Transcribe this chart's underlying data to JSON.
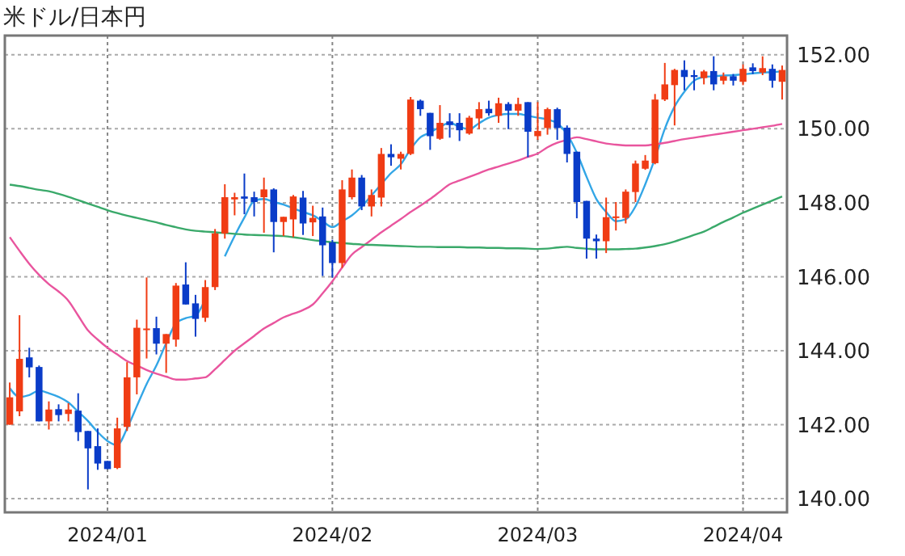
{
  "chart_data": {
    "type": "candlestick",
    "title": "米ドル/日本円",
    "categories": [
      null,
      null,
      null,
      null,
      null,
      null,
      null,
      null,
      null,
      null,
      "2024/01",
      null,
      null,
      null,
      null,
      null,
      null,
      null,
      null,
      null,
      null,
      null,
      null,
      null,
      null,
      null,
      null,
      null,
      null,
      null,
      null,
      null,
      null,
      "2024/02",
      null,
      null,
      null,
      null,
      null,
      null,
      null,
      null,
      null,
      null,
      null,
      null,
      null,
      null,
      null,
      null,
      null,
      null,
      null,
      null,
      "2024/03",
      null,
      null,
      null,
      null,
      null,
      null,
      null,
      null,
      null,
      null,
      null,
      null,
      null,
      null,
      null,
      null,
      null,
      null,
      null,
      null,
      "2024/04",
      null,
      null,
      null,
      null
    ],
    "ohlc": [
      [
        142.0,
        143.14,
        142.0,
        142.74
      ],
      [
        142.36,
        144.96,
        142.23,
        143.78
      ],
      [
        143.82,
        144.08,
        143.28,
        143.55
      ],
      [
        143.56,
        143.6,
        142.09,
        142.09
      ],
      [
        142.09,
        142.63,
        141.87,
        142.41
      ],
      [
        142.42,
        142.55,
        142.09,
        142.26
      ],
      [
        142.29,
        142.58,
        142.09,
        142.41
      ],
      [
        142.38,
        142.85,
        141.56,
        141.8
      ],
      [
        141.83,
        141.83,
        140.25,
        141.36
      ],
      [
        141.42,
        141.9,
        140.78,
        140.95
      ],
      [
        141.02,
        141.02,
        140.8,
        140.8
      ],
      [
        140.83,
        142.19,
        140.8,
        141.9
      ],
      [
        141.94,
        143.69,
        141.83,
        143.28
      ],
      [
        143.28,
        144.84,
        142.82,
        144.62
      ],
      [
        144.58,
        145.98,
        143.79,
        144.6
      ],
      [
        144.61,
        144.92,
        143.9,
        144.19
      ],
      [
        144.19,
        144.45,
        143.4,
        144.45
      ],
      [
        144.3,
        145.83,
        144.11,
        145.76
      ],
      [
        145.79,
        146.39,
        145.25,
        145.25
      ],
      [
        145.28,
        145.51,
        144.38,
        144.86
      ],
      [
        144.89,
        145.91,
        144.78,
        145.72
      ],
      [
        145.72,
        147.29,
        145.64,
        147.17
      ],
      [
        147.17,
        148.5,
        147.03,
        148.15
      ],
      [
        148.09,
        148.27,
        147.66,
        148.15
      ],
      [
        148.17,
        148.79,
        147.69,
        148.11
      ],
      [
        148.15,
        148.3,
        147.63,
        148.02
      ],
      [
        148.15,
        148.68,
        147.19,
        148.36
      ],
      [
        148.36,
        148.39,
        146.66,
        147.48
      ],
      [
        147.48,
        147.62,
        147.1,
        147.62
      ],
      [
        147.55,
        148.21,
        147.07,
        148.17
      ],
      [
        148.14,
        148.32,
        147.13,
        147.44
      ],
      [
        147.47,
        147.92,
        147.1,
        147.59
      ],
      [
        147.63,
        147.87,
        146.02,
        146.85
      ],
      [
        146.93,
        147.0,
        145.98,
        146.37
      ],
      [
        146.37,
        148.61,
        146.24,
        148.36
      ],
      [
        148.15,
        148.9,
        148.09,
        148.68
      ],
      [
        148.68,
        148.75,
        147.8,
        147.9
      ],
      [
        147.9,
        148.36,
        147.63,
        148.21
      ],
      [
        148.14,
        149.48,
        147.9,
        149.32
      ],
      [
        149.32,
        149.58,
        149.0,
        149.23
      ],
      [
        149.19,
        149.38,
        148.9,
        149.32
      ],
      [
        149.32,
        150.86,
        149.29,
        150.79
      ],
      [
        150.76,
        150.79,
        150.35,
        150.53
      ],
      [
        150.43,
        150.43,
        149.43,
        149.8
      ],
      [
        149.73,
        150.64,
        149.7,
        150.16
      ],
      [
        150.2,
        150.42,
        149.76,
        150.1
      ],
      [
        150.16,
        150.42,
        149.67,
        149.96
      ],
      [
        149.87,
        150.35,
        149.84,
        150.3
      ],
      [
        150.28,
        150.72,
        149.99,
        150.53
      ],
      [
        150.54,
        150.76,
        150.35,
        150.42
      ],
      [
        150.35,
        150.84,
        150.16,
        150.69
      ],
      [
        150.67,
        150.72,
        149.99,
        150.49
      ],
      [
        150.49,
        150.84,
        150.35,
        150.67
      ],
      [
        150.72,
        150.72,
        149.23,
        149.92
      ],
      [
        149.8,
        150.72,
        149.7,
        149.94
      ],
      [
        150.02,
        150.57,
        149.84,
        150.53
      ],
      [
        150.53,
        150.57,
        149.7,
        150.02
      ],
      [
        150.03,
        150.09,
        149.09,
        149.32
      ],
      [
        149.38,
        149.38,
        147.58,
        148.02
      ],
      [
        148.05,
        148.05,
        146.49,
        147.03
      ],
      [
        147.03,
        147.14,
        146.49,
        146.96
      ],
      [
        146.96,
        148.14,
        146.64,
        147.61
      ],
      [
        147.59,
        148.02,
        147.25,
        147.63
      ],
      [
        147.59,
        148.36,
        147.44,
        148.3
      ],
      [
        148.29,
        149.14,
        148.02,
        149.06
      ],
      [
        148.92,
        149.29,
        148.89,
        149.14
      ],
      [
        149.07,
        150.94,
        149.04,
        150.79
      ],
      [
        150.79,
        151.78,
        150.75,
        151.2
      ],
      [
        151.18,
        151.62,
        150.09,
        151.59
      ],
      [
        151.59,
        151.85,
        151.04,
        151.4
      ],
      [
        151.45,
        151.59,
        151.04,
        151.4
      ],
      [
        151.37,
        151.59,
        151.2,
        151.55
      ],
      [
        151.56,
        151.96,
        151.04,
        151.2
      ],
      [
        151.3,
        151.52,
        151.2,
        151.42
      ],
      [
        151.42,
        151.48,
        151.17,
        151.3
      ],
      [
        151.27,
        151.74,
        151.18,
        151.62
      ],
      [
        151.66,
        151.77,
        151.48,
        151.56
      ],
      [
        151.52,
        151.96,
        151.45,
        151.64
      ],
      [
        151.62,
        151.74,
        151.11,
        151.3
      ],
      [
        151.27,
        151.71,
        150.79,
        151.59
      ]
    ],
    "colors": [
      "#f03c14",
      "#f03c14",
      "#0a3cc8",
      "#0a3cc8",
      "#f03c14",
      "#0a3cc8",
      "#f03c14",
      "#0a3cc8",
      "#0a3cc8",
      "#0a3cc8",
      "#0a3cc8",
      "#f03c14",
      "#f03c14",
      "#f03c14",
      "#f03c14",
      "#0a3cc8",
      "#f03c14",
      "#f03c14",
      "#0a3cc8",
      "#0a3cc8",
      "#f03c14",
      "#f03c14",
      "#f03c14",
      "#f03c14",
      "#0a3cc8",
      "#0a3cc8",
      "#f03c14",
      "#0a3cc8",
      "#f03c14",
      "#f03c14",
      "#0a3cc8",
      "#f03c14",
      "#0a3cc8",
      "#0a3cc8",
      "#f03c14",
      "#f03c14",
      "#0a3cc8",
      "#f03c14",
      "#f03c14",
      "#0a3cc8",
      "#f03c14",
      "#f03c14",
      "#0a3cc8",
      "#0a3cc8",
      "#f03c14",
      "#0a3cc8",
      "#0a3cc8",
      "#f03c14",
      "#f03c14",
      "#0a3cc8",
      "#f03c14",
      "#0a3cc8",
      "#f03c14",
      "#0a3cc8",
      "#f03c14",
      "#f03c14",
      "#0a3cc8",
      "#0a3cc8",
      "#0a3cc8",
      "#0a3cc8",
      "#0a3cc8",
      "#f03c14",
      "#f03c14",
      "#f03c14",
      "#f03c14",
      "#f03c14",
      "#f03c14",
      "#f03c14",
      "#f03c14",
      "#0a3cc8",
      "#0a3cc8",
      "#f03c14",
      "#0a3cc8",
      "#f03c14",
      "#0a3cc8",
      "#f03c14",
      "#0a3cc8",
      "#f03c14",
      "#0a3cc8",
      "#f03c14"
    ],
    "series": [
      {
        "type": "line",
        "color": "#33a6e6",
        "values": [
          142.99,
          142.75,
          142.8,
          142.92,
          142.85,
          142.75,
          142.6,
          142.35,
          142.1,
          141.8,
          141.56,
          141.45,
          141.9,
          142.5,
          143.1,
          143.6,
          144.2,
          144.74,
          144.88,
          144.95,
          145.4,
          null,
          146.55,
          147.1,
          147.6,
          148.05,
          148.1,
          148.02,
          147.95,
          147.85,
          147.75,
          147.66,
          147.5,
          147.34,
          147.5,
          147.66,
          147.9,
          148.2,
          148.5,
          148.8,
          149.04,
          149.45,
          149.77,
          149.9,
          150.05,
          150.16,
          150.05,
          149.99,
          150.15,
          150.3,
          150.37,
          150.4,
          150.4,
          150.35,
          150.3,
          150.25,
          150.15,
          149.85,
          149.35,
          148.7,
          148.1,
          147.75,
          147.5,
          147.55,
          147.9,
          148.5,
          149.2,
          150.0,
          150.6,
          151.0,
          151.3,
          151.4,
          151.42,
          151.44,
          151.45,
          151.47,
          151.5,
          151.52,
          151.53,
          151.55
        ]
      },
      {
        "type": "line",
        "color": "#e9559e",
        "values": [
          147.07,
          146.7,
          146.35,
          146.05,
          145.8,
          145.6,
          145.35,
          144.95,
          144.55,
          144.3,
          144.08,
          143.9,
          143.72,
          143.6,
          143.48,
          143.38,
          143.3,
          143.22,
          143.22,
          143.25,
          143.28,
          143.5,
          143.75,
          144.0,
          144.2,
          144.4,
          144.6,
          144.75,
          144.9,
          145.0,
          145.1,
          145.25,
          145.55,
          145.88,
          146.25,
          146.6,
          146.8,
          147.0,
          147.2,
          147.38,
          147.56,
          147.75,
          147.92,
          148.1,
          148.3,
          148.5,
          148.6,
          148.7,
          148.8,
          148.9,
          148.98,
          149.06,
          149.14,
          149.24,
          149.33,
          149.5,
          149.62,
          149.7,
          149.77,
          149.72,
          149.66,
          149.6,
          149.57,
          149.55,
          149.55,
          149.55,
          149.58,
          149.62,
          149.67,
          149.72,
          149.76,
          149.8,
          149.84,
          149.88,
          149.92,
          149.96,
          150.0,
          150.04,
          150.08,
          150.13
        ]
      },
      {
        "type": "line",
        "color": "#3aa96a",
        "values": [
          148.49,
          148.45,
          148.4,
          148.35,
          148.31,
          148.24,
          148.16,
          148.07,
          147.98,
          147.89,
          147.8,
          147.72,
          147.65,
          147.59,
          147.53,
          147.47,
          147.4,
          147.34,
          147.28,
          147.24,
          147.22,
          147.2,
          147.18,
          147.16,
          147.14,
          147.13,
          147.12,
          147.11,
          147.1,
          147.07,
          147.03,
          146.99,
          146.96,
          146.93,
          146.91,
          146.89,
          146.87,
          146.86,
          146.85,
          146.84,
          146.83,
          146.82,
          146.81,
          146.81,
          146.8,
          146.8,
          146.8,
          146.79,
          146.79,
          146.78,
          146.78,
          146.77,
          146.77,
          146.76,
          146.75,
          146.76,
          146.79,
          146.81,
          146.78,
          146.76,
          146.74,
          146.74,
          146.74,
          146.75,
          146.76,
          146.79,
          146.83,
          146.88,
          146.95,
          147.04,
          147.13,
          147.22,
          147.35,
          147.48,
          147.6,
          147.73,
          147.84,
          147.95,
          148.06,
          148.17
        ]
      }
    ],
    "ylim": [
      139.63,
      152.52
    ],
    "yticks": [
      {
        "value": 140,
        "label": "140.00"
      },
      {
        "value": 142,
        "label": "142.00"
      },
      {
        "value": 144,
        "label": "144.00"
      },
      {
        "value": 146,
        "label": "146.00"
      },
      {
        "value": 148,
        "label": "148.00"
      },
      {
        "value": 150,
        "label": "150.00"
      },
      {
        "value": 152,
        "label": "152.00"
      }
    ],
    "grid": true,
    "line_style": "solid",
    "marker": "none"
  }
}
